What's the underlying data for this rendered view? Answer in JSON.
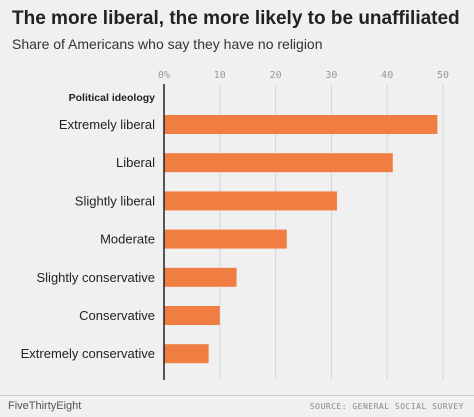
{
  "header": {
    "title": "The more liberal, the more likely to be unaffiliated",
    "subtitle": "Share of Americans who say they have no religion"
  },
  "footer": {
    "brand": "FiveThirtyEight",
    "source": "SOURCE: GENERAL SOCIAL SURVEY"
  },
  "colors": {
    "bar": "#f07d41",
    "axis": "#222222",
    "grid": "#d6d6d6",
    "tick_text": "#999999",
    "label_text": "#222222"
  },
  "chart_data": {
    "type": "bar",
    "orientation": "horizontal",
    "category_header": "Political ideology",
    "categories": [
      "Extremely liberal",
      "Liberal",
      "Slightly liberal",
      "Moderate",
      "Slightly conservative",
      "Conservative",
      "Extremely conservative"
    ],
    "values": [
      49,
      41,
      31,
      22,
      13,
      10,
      8
    ],
    "xlim": [
      0,
      50
    ],
    "xticks": [
      0,
      10,
      20,
      30,
      40,
      50
    ],
    "xtick_labels": [
      "0%",
      "10",
      "20",
      "30",
      "40",
      "50"
    ],
    "grid": true,
    "xaxis_position": "top"
  }
}
